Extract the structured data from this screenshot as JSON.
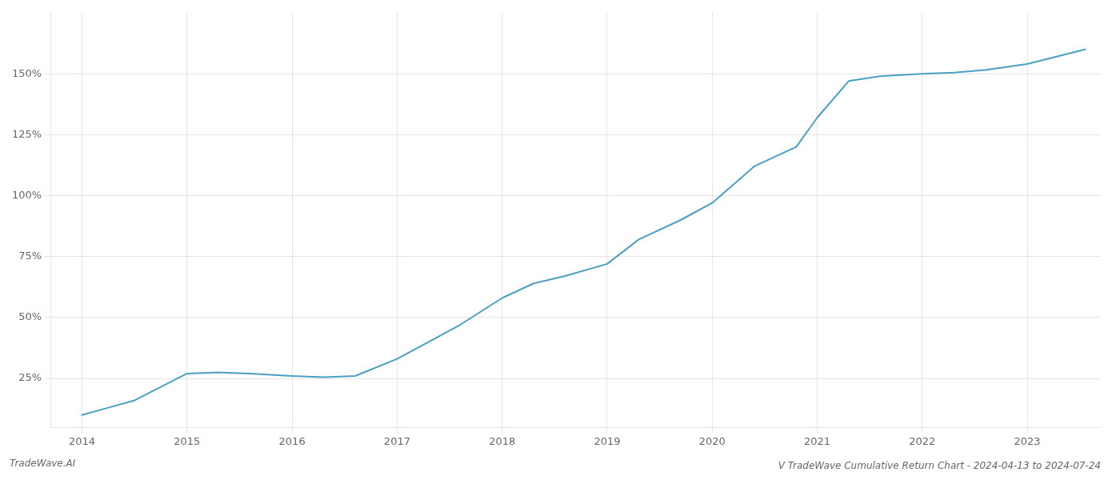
{
  "chart_data": {
    "type": "line",
    "title": "V TradeWave Cumulative Return Chart - 2024-04-13 to 2024-07-24",
    "annotations": [
      "TradeWave.AI"
    ],
    "x": [
      2014.0,
      2014.25,
      2014.5,
      2015.0,
      2015.3,
      2015.6,
      2016.0,
      2016.3,
      2016.6,
      2017.0,
      2017.3,
      2017.6,
      2018.0,
      2018.3,
      2018.6,
      2019.0,
      2019.3,
      2019.7,
      2020.0,
      2020.4,
      2020.8,
      2021.0,
      2021.3,
      2021.6,
      2022.0,
      2022.3,
      2022.6,
      2023.0,
      2023.55
    ],
    "values": [
      10,
      13,
      16,
      27,
      27.5,
      27,
      26,
      25.5,
      26,
      33,
      40,
      47,
      58,
      64,
      67,
      72,
      82,
      90,
      97,
      112,
      120,
      132,
      147,
      149,
      150,
      150.5,
      151.5,
      154,
      160
    ],
    "color": "#4a9fc4",
    "xlim": [
      2013.7,
      2023.7
    ],
    "xticks": [
      2014,
      2015,
      2016,
      2017,
      2018,
      2019,
      2020,
      2021,
      2022,
      2023
    ],
    "ylim": [
      5,
      175
    ],
    "yticks": [
      {
        "value": 25,
        "label": "25%"
      },
      {
        "value": 50,
        "label": "50%"
      },
      {
        "value": 75,
        "label": "75%"
      },
      {
        "value": 100,
        "label": "100%"
      },
      {
        "value": 125,
        "label": "125%"
      },
      {
        "value": 150,
        "label": "150%"
      }
    ],
    "grid": true
  }
}
